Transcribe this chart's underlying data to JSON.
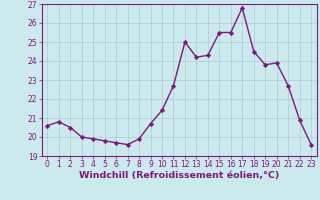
{
  "x": [
    0,
    1,
    2,
    3,
    4,
    5,
    6,
    7,
    8,
    9,
    10,
    11,
    12,
    13,
    14,
    15,
    16,
    17,
    18,
    19,
    20,
    21,
    22,
    23
  ],
  "y": [
    20.6,
    20.8,
    20.5,
    20.0,
    19.9,
    19.8,
    19.7,
    19.6,
    19.9,
    20.7,
    21.4,
    22.7,
    25.0,
    24.2,
    24.3,
    25.5,
    25.5,
    26.8,
    24.5,
    23.8,
    23.9,
    22.7,
    20.9,
    19.6
  ],
  "line_color": "#7b1a7b",
  "marker": "D",
  "marker_size": 2.2,
  "bg_color": "#cceaee",
  "grid_color": "#aaccd4",
  "xlabel": "Windchill (Refroidissement éolien,°C)",
  "ylim": [
    19,
    27
  ],
  "xlim": [
    -0.5,
    23.5
  ],
  "yticks": [
    19,
    20,
    21,
    22,
    23,
    24,
    25,
    26,
    27
  ],
  "xticks": [
    0,
    1,
    2,
    3,
    4,
    5,
    6,
    7,
    8,
    9,
    10,
    11,
    12,
    13,
    14,
    15,
    16,
    17,
    18,
    19,
    20,
    21,
    22,
    23
  ],
  "tick_color": "#7b1a7b",
  "tick_fontsize": 5.5,
  "xlabel_fontsize": 6.8,
  "linewidth": 1.0,
  "spine_color": "#7b1a7b"
}
